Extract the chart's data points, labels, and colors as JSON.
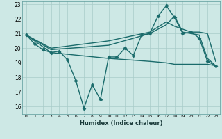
{
  "xlabel": "Humidex (Indice chaleur)",
  "xlim": [
    -0.5,
    23.5
  ],
  "ylim": [
    15.5,
    23.2
  ],
  "yticks": [
    16,
    17,
    18,
    19,
    20,
    21,
    22,
    23
  ],
  "xticks": [
    0,
    1,
    2,
    3,
    4,
    5,
    6,
    7,
    8,
    9,
    10,
    11,
    12,
    13,
    14,
    15,
    16,
    17,
    18,
    19,
    20,
    21,
    22,
    23
  ],
  "bg_color": "#cde8e5",
  "grid_color": "#a8ccc9",
  "line_color": "#1a6b6b",
  "series": [
    {
      "x": [
        0,
        1,
        2,
        3,
        4,
        5,
        6,
        7,
        8,
        9,
        10,
        11,
        12,
        13,
        14,
        15,
        16,
        17,
        18,
        19,
        20,
        21,
        22,
        23
      ],
      "y": [
        20.9,
        20.3,
        19.9,
        19.7,
        19.8,
        19.2,
        17.8,
        15.9,
        17.5,
        16.5,
        19.4,
        19.4,
        20.0,
        19.5,
        20.9,
        21.0,
        22.2,
        22.9,
        22.1,
        21.0,
        21.1,
        20.7,
        19.1,
        18.8
      ],
      "marker": "D",
      "markersize": 2.5,
      "linewidth": 1.0
    },
    {
      "x": [
        0,
        3,
        10,
        15,
        17,
        18,
        19,
        20,
        21,
        22,
        23
      ],
      "y": [
        20.9,
        20.0,
        20.5,
        21.1,
        21.8,
        21.5,
        21.3,
        21.1,
        21.1,
        21.0,
        19.1
      ],
      "marker": null,
      "linewidth": 1.0
    },
    {
      "x": [
        0,
        3,
        10,
        15,
        17,
        18,
        19,
        20,
        21,
        22,
        23
      ],
      "y": [
        20.9,
        19.9,
        20.2,
        21.0,
        21.6,
        22.2,
        21.1,
        21.0,
        20.9,
        19.3,
        18.8
      ],
      "marker": null,
      "linewidth": 1.0
    },
    {
      "x": [
        0,
        3,
        10,
        15,
        17,
        18,
        20,
        21,
        22,
        23
      ],
      "y": [
        20.9,
        19.7,
        19.3,
        19.1,
        19.0,
        18.9,
        18.9,
        18.9,
        18.9,
        18.8
      ],
      "marker": null,
      "linewidth": 1.0
    }
  ]
}
